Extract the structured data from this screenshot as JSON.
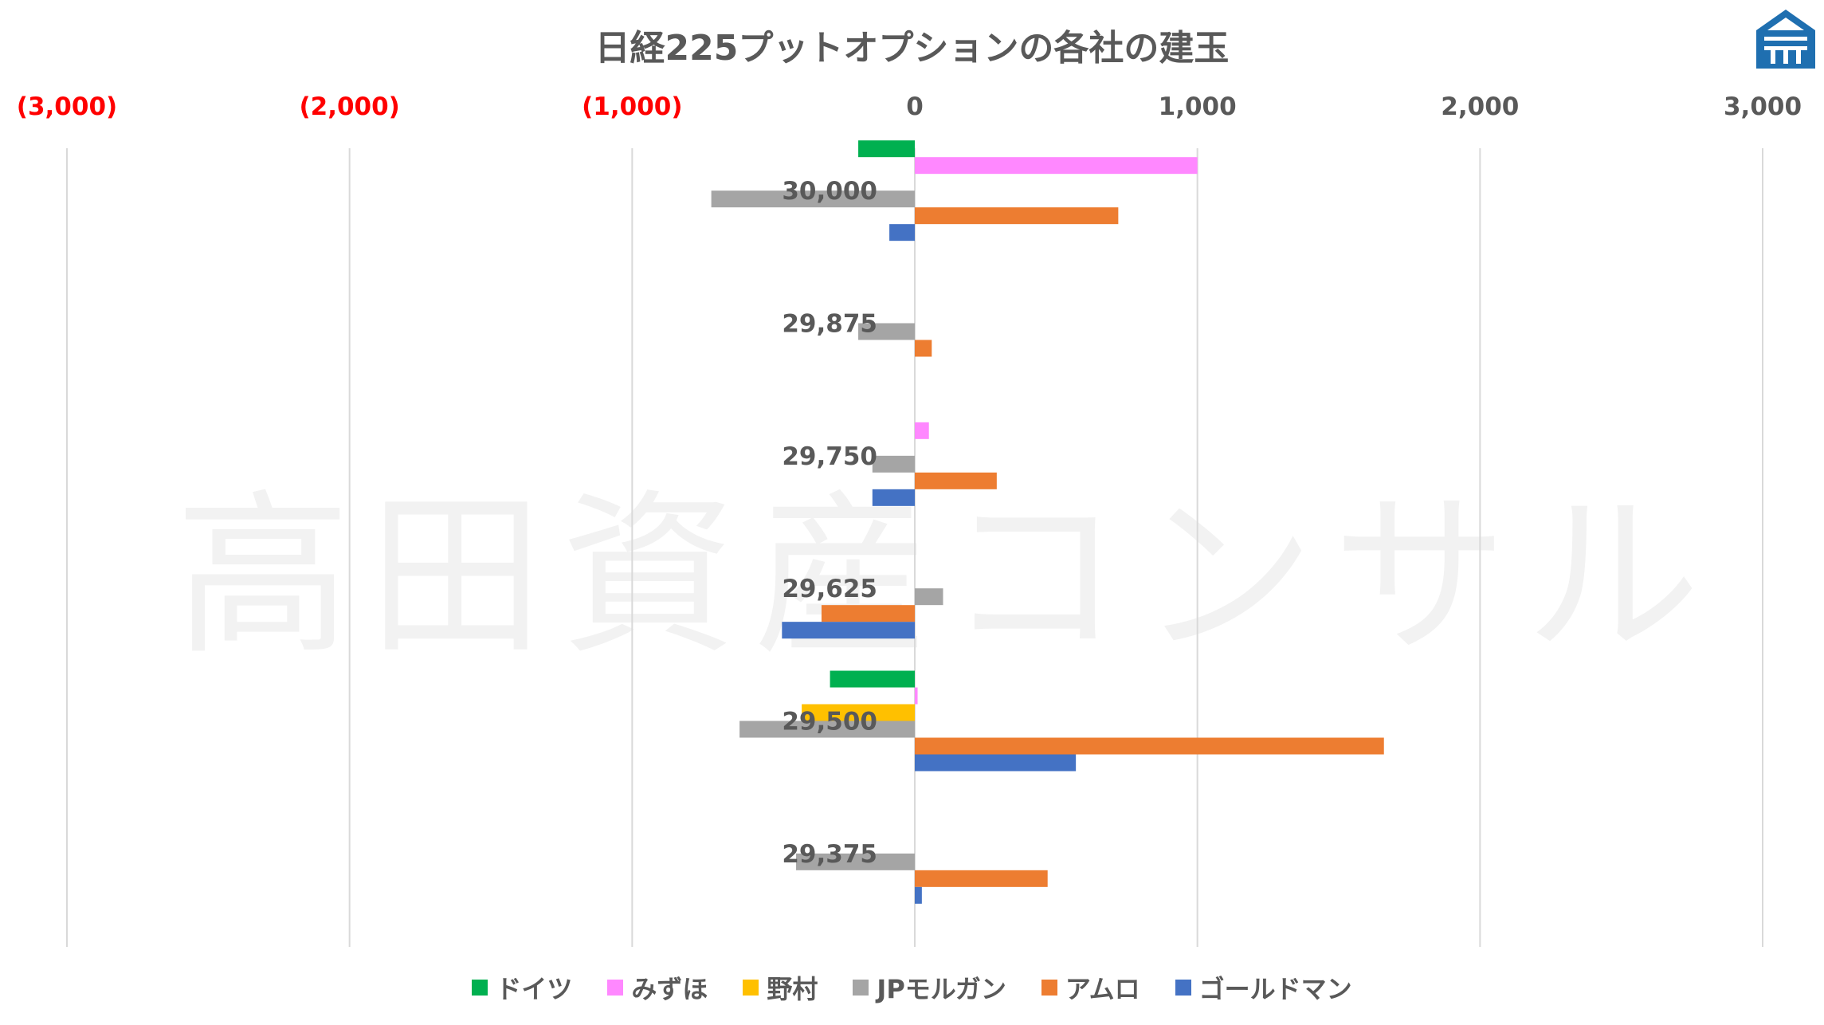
{
  "chart_data": {
    "type": "bar",
    "orientation": "horizontal",
    "title": "日経225プットオプションの各社の建玉",
    "xlabel": "",
    "ylabel": "",
    "xlim": [
      -3000,
      3000
    ],
    "x_ticks": [
      {
        "value": -3000,
        "label": "(3,000)",
        "color": "#ff0000"
      },
      {
        "value": -2000,
        "label": "(2,000)",
        "color": "#ff0000"
      },
      {
        "value": -1000,
        "label": "(1,000)",
        "color": "#ff0000"
      },
      {
        "value": 0,
        "label": "0",
        "color": "#595959"
      },
      {
        "value": 1000,
        "label": "1,000",
        "color": "#595959"
      },
      {
        "value": 2000,
        "label": "2,000",
        "color": "#595959"
      },
      {
        "value": 3000,
        "label": "3,000",
        "color": "#595959"
      }
    ],
    "x_axis_position": "top",
    "grid": "vertical",
    "legend_position": "bottom",
    "categories": [
      "30,000",
      "29,875",
      "29,750",
      "29,625",
      "29,500",
      "29,375"
    ],
    "series": [
      {
        "name": "ドイツ",
        "color": "#00b050",
        "values": [
          -200,
          0,
          0,
          0,
          -300,
          0
        ]
      },
      {
        "name": "みずほ",
        "color": "#ff88ff",
        "values": [
          1000,
          0,
          50,
          0,
          10,
          0
        ]
      },
      {
        "name": "野村",
        "color": "#ffc000",
        "values": [
          0,
          0,
          0,
          0,
          -400,
          0
        ]
      },
      {
        "name": "JPモルガン",
        "color": "#a5a5a5",
        "values": [
          -720,
          -200,
          -150,
          100,
          -620,
          -420
        ]
      },
      {
        "name": "アムロ",
        "color": "#ed7d31",
        "values": [
          720,
          60,
          290,
          -330,
          1660,
          470
        ]
      },
      {
        "name": "ゴールドマン",
        "color": "#4472c4",
        "values": [
          -90,
          0,
          -150,
          -470,
          570,
          25
        ]
      }
    ]
  },
  "watermark": "高田資産コンサル",
  "logo_icon": "house-logo-icon"
}
